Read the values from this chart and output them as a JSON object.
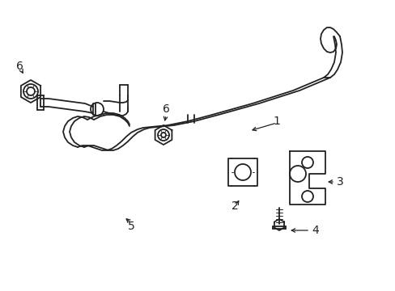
{
  "background_color": "#ffffff",
  "line_color": "#222222",
  "line_width": 1.3,
  "fig_width": 4.89,
  "fig_height": 3.6,
  "dpi": 100
}
